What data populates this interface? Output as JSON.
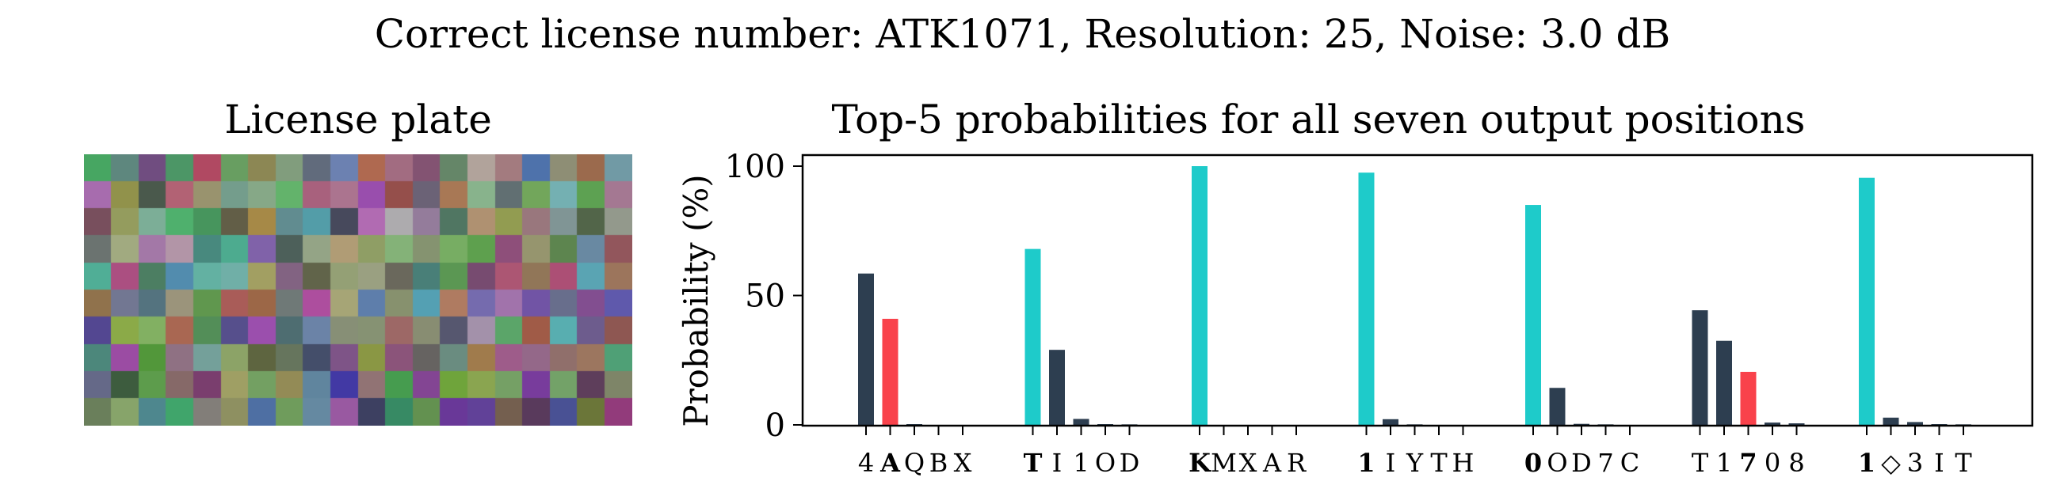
{
  "suptitle": "Correct license number: ATK1071, Resolution: 25, Noise: 3.0 dB",
  "plate": {
    "title": "License plate",
    "rows": 10,
    "cols": 20
  },
  "colors": {
    "correct": "#1ecbca",
    "incorrect_top": "#2d3e50",
    "correct_rank_other": "#f9424b",
    "other": "#2d3e50"
  },
  "chart_data": {
    "type": "bar",
    "title": "Top-5 probabilities for all seven output positions",
    "ylabel": "Probability (%)",
    "ylim": [
      0,
      105
    ],
    "yticks": [
      0,
      50,
      100
    ],
    "grid": false,
    "positions": [
      {
        "correct": "A",
        "labels": [
          "4",
          "A",
          "Q",
          "B",
          "X"
        ],
        "values": [
          58.5,
          41.0,
          0.3,
          0.1,
          0.1
        ]
      },
      {
        "correct": "T",
        "labels": [
          "T",
          "I",
          "1",
          "O",
          "D"
        ],
        "values": [
          68.0,
          29.0,
          2.3,
          0.3,
          0.2
        ]
      },
      {
        "correct": "K",
        "labels": [
          "K",
          "M",
          "X",
          "A",
          "R"
        ],
        "values": [
          100.0,
          0.1,
          0.0,
          0.0,
          0.0
        ]
      },
      {
        "correct": "1",
        "labels": [
          "1",
          "I",
          "Y",
          "T",
          "H"
        ],
        "values": [
          97.5,
          2.2,
          0.2,
          0.1,
          0.0
        ]
      },
      {
        "correct": "0",
        "labels": [
          "0",
          "O",
          "D",
          "7",
          "C"
        ],
        "values": [
          85.0,
          14.3,
          0.4,
          0.2,
          0.1
        ]
      },
      {
        "correct": "7",
        "labels": [
          "T",
          "1",
          "7",
          "0",
          "8"
        ],
        "values": [
          44.3,
          32.5,
          20.5,
          0.9,
          0.6
        ]
      },
      {
        "correct": "1",
        "labels": [
          "1",
          "◇",
          "3",
          "I",
          "T"
        ],
        "values": [
          95.5,
          2.8,
          1.1,
          0.3,
          0.2
        ]
      }
    ]
  }
}
